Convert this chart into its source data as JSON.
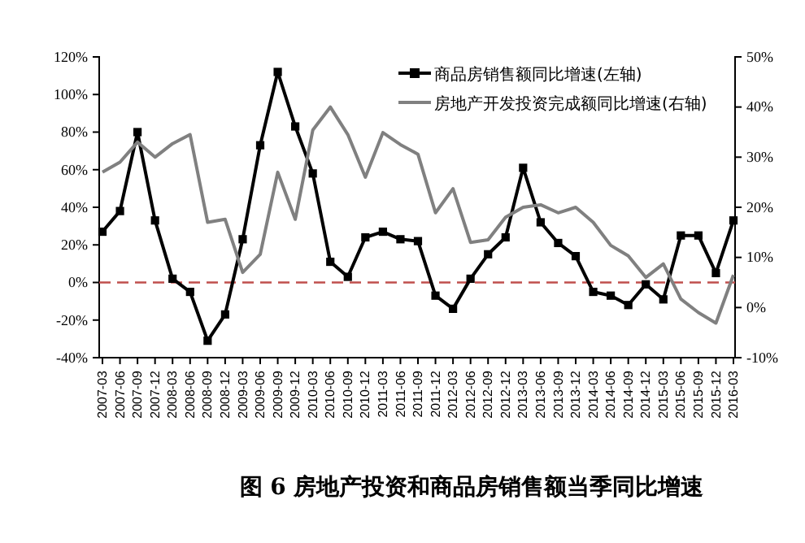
{
  "chart_data": {
    "type": "line",
    "title": "图 6 房地产投资和商品房销售额当季同比增速",
    "categories": [
      "2007-03",
      "2007-06",
      "2007-09",
      "2007-12",
      "2008-03",
      "2008-06",
      "2008-09",
      "2008-12",
      "2009-03",
      "2009-06",
      "2009-09",
      "2009-12",
      "2010-03",
      "2010-06",
      "2010-09",
      "2010-12",
      "2011-03",
      "2011-06",
      "2011-09",
      "2011-12",
      "2012-03",
      "2012-06",
      "2012-09",
      "2012-12",
      "2013-03",
      "2013-06",
      "2013-09",
      "2013-12",
      "2014-03",
      "2014-06",
      "2014-09",
      "2014-12",
      "2015-03",
      "2015-06",
      "2015-09",
      "2015-12",
      "2016-03"
    ],
    "series": [
      {
        "name": "商品房销售额同比增速(左轴)",
        "color": "#000000",
        "marker": "square",
        "values": [
          27,
          38,
          80,
          33,
          2,
          -5,
          -31,
          -17,
          23,
          73,
          112,
          83,
          58,
          11,
          3,
          24,
          27,
          23,
          22,
          -7,
          -14,
          2,
          15,
          24,
          61,
          32,
          21,
          14,
          -5,
          -7,
          -12,
          -1,
          -9,
          25,
          25,
          5,
          33
        ]
      },
      {
        "name": "房地产开发投资完成额同比增速(右轴)",
        "color": "#808080",
        "marker": "none",
        "axis": "y2",
        "values": [
          27,
          29,
          33,
          30,
          32.7,
          34.5,
          17,
          17.6,
          7,
          10.6,
          27,
          17.6,
          35.4,
          40,
          34.5,
          26,
          34.9,
          32.5,
          30.6,
          18.9,
          23.7,
          13,
          13.5,
          18,
          20,
          20.5,
          18.9,
          20,
          17,
          12.4,
          10.3,
          6,
          8.7,
          1.7,
          -1,
          -3.1,
          6.5
        ]
      }
    ],
    "ylim": [
      -40,
      120
    ],
    "yticks": [
      {
        "value": -40,
        "label": "-40%"
      },
      {
        "value": -20,
        "label": "-20%"
      },
      {
        "value": 0,
        "label": "0%"
      },
      {
        "value": 20,
        "label": "20%"
      },
      {
        "value": 40,
        "label": "40%"
      },
      {
        "value": 60,
        "label": "60%"
      },
      {
        "value": 80,
        "label": "80%"
      },
      {
        "value": 100,
        "label": "100%"
      },
      {
        "value": 120,
        "label": "120%"
      }
    ],
    "y2lim": [
      -10,
      50
    ],
    "y2ticks": [
      {
        "value": -10,
        "label": "-10%"
      },
      {
        "value": 0,
        "label": "0%"
      },
      {
        "value": 10,
        "label": "10%"
      },
      {
        "value": 20,
        "label": "20%"
      },
      {
        "value": 30,
        "label": "30%"
      },
      {
        "value": 40,
        "label": "40%"
      },
      {
        "value": 50,
        "label": "50%"
      }
    ],
    "ref_lines": [
      {
        "axis": "y",
        "value": 0,
        "color": "#c0504d",
        "line_style": "dashed"
      }
    ],
    "legend": "top right",
    "grid": false
  }
}
